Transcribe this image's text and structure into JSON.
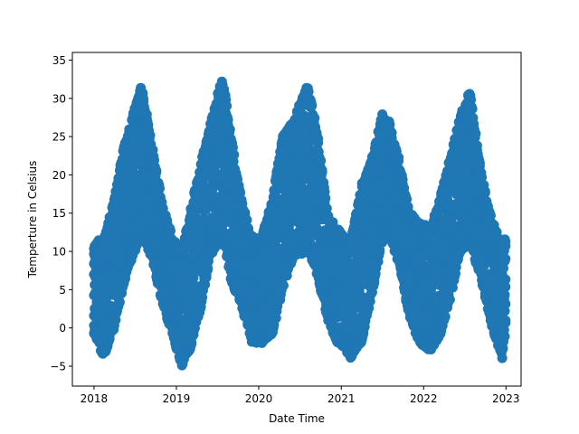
{
  "chart_data": {
    "type": "scatter",
    "title": "",
    "xlabel": "Date Time",
    "ylabel": "Temperture in Celsius",
    "xlim": [
      "2017-09-27",
      "2023-03-09"
    ],
    "ylim": [
      -7.6,
      36.0
    ],
    "x_ticks": [
      {
        "value": "2018-01-01",
        "label": "2018"
      },
      {
        "value": "2019-01-01",
        "label": "2019"
      },
      {
        "value": "2020-01-01",
        "label": "2020"
      },
      {
        "value": "2021-01-01",
        "label": "2021"
      },
      {
        "value": "2022-01-01",
        "label": "2022"
      },
      {
        "value": "2023-01-01",
        "label": "2023"
      }
    ],
    "y_ticks": [
      -5,
      0,
      5,
      10,
      15,
      20,
      25,
      30,
      35
    ],
    "grid": false,
    "legend": "none",
    "marker_color": "#1f77b4",
    "x_range": [
      "2018-01-01",
      "2023-01-01"
    ],
    "series": [
      {
        "x": [
          "2018-01-01",
          "2018-02-15",
          "2018-04-01",
          "2018-05-15",
          "2018-07-01",
          "2018-07-31",
          "2018-09-15",
          "2018-11-01",
          "2018-12-15",
          "2019-01-25",
          "2019-03-01",
          "2019-04-15",
          "2019-06-01",
          "2019-07-25",
          "2019-09-01",
          "2019-10-15",
          "2019-12-01",
          "2020-01-15",
          "2020-03-01",
          "2020-04-15",
          "2020-06-01",
          "2020-08-05",
          "2020-09-15",
          "2020-11-01",
          "2020-12-15",
          "2021-02-10",
          "2021-04-01",
          "2021-05-15",
          "2021-07-01",
          "2021-08-01",
          "2021-09-15",
          "2021-11-01",
          "2021-12-15",
          "2022-01-30",
          "2022-03-15",
          "2022-05-01",
          "2022-06-15",
          "2022-07-25",
          "2022-09-15",
          "2022-11-01",
          "2022-12-15",
          "2023-01-01"
        ],
        "y_min": [
          -1,
          -4,
          0,
          6,
          10,
          12,
          9,
          3,
          -1,
          -5,
          -3,
          2,
          9,
          12,
          6,
          3,
          -2,
          -2,
          -1,
          5,
          9,
          10,
          7,
          1,
          -2,
          -4,
          -2,
          4,
          11,
          12,
          8,
          1,
          -2,
          -3,
          -1,
          4,
          10,
          11,
          6,
          0,
          -4,
          0
        ],
        "y_max": [
          11,
          12,
          17,
          24,
          29,
          32,
          24,
          16,
          12,
          10,
          15,
          21,
          27,
          33,
          25,
          17,
          12,
          12,
          17,
          25,
          27,
          32,
          26,
          15,
          13,
          11,
          19,
          22,
          28,
          27,
          22,
          15,
          14,
          13,
          17,
          23,
          28,
          31,
          20,
          14,
          11,
          12
        ]
      }
    ]
  }
}
